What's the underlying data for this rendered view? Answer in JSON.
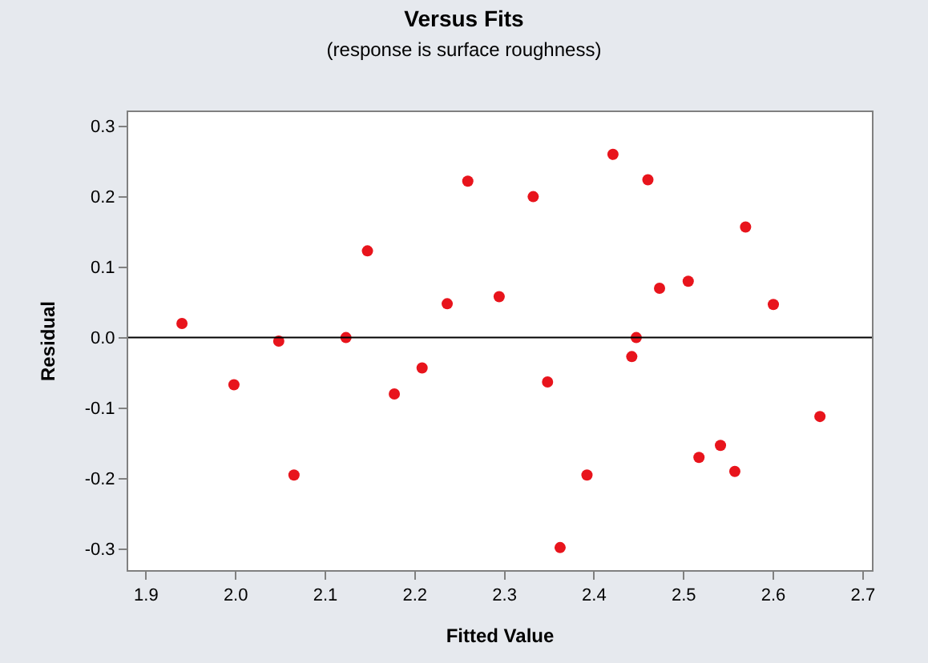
{
  "chart_data": {
    "type": "scatter",
    "title": "Versus Fits",
    "subtitle": "(response is surface roughness)",
    "xlabel": "Fitted Value",
    "ylabel": "Residual",
    "x": [
      1.94,
      1.998,
      2.048,
      2.065,
      2.123,
      2.147,
      2.177,
      2.208,
      2.236,
      2.259,
      2.294,
      2.332,
      2.348,
      2.362,
      2.392,
      2.421,
      2.442,
      2.447,
      2.46,
      2.473,
      2.505,
      2.517,
      2.541,
      2.557,
      2.569,
      2.6,
      2.652
    ],
    "series": [
      {
        "color": "#e8141c",
        "values": [
          0.02,
          -0.067,
          -0.005,
          -0.195,
          0.0,
          0.123,
          -0.08,
          -0.043,
          0.048,
          0.222,
          0.058,
          0.2,
          -0.063,
          -0.298,
          -0.195,
          0.26,
          -0.027,
          0.0,
          0.224,
          0.07,
          0.08,
          -0.17,
          -0.153,
          -0.19,
          0.157,
          0.047,
          -0.112
        ]
      }
    ],
    "xlim": [
      1.88,
      2.71
    ],
    "ylim": [
      -0.33,
      0.32
    ],
    "xticks": [
      1.9,
      {
        "value": 2,
        "label": "2.0"
      },
      2.1,
      2.2,
      2.3,
      2.4,
      2.5,
      2.6,
      2.7
    ],
    "yticks": [
      -0.3,
      -0.2,
      -0.1,
      {
        "value": 0,
        "label": "0.0"
      },
      0.1,
      0.2,
      0.3
    ],
    "ref_lines": [
      {
        "axis": "y",
        "value": 0,
        "color": "#000000",
        "line_style": "solid"
      }
    ],
    "marker": "circle"
  }
}
